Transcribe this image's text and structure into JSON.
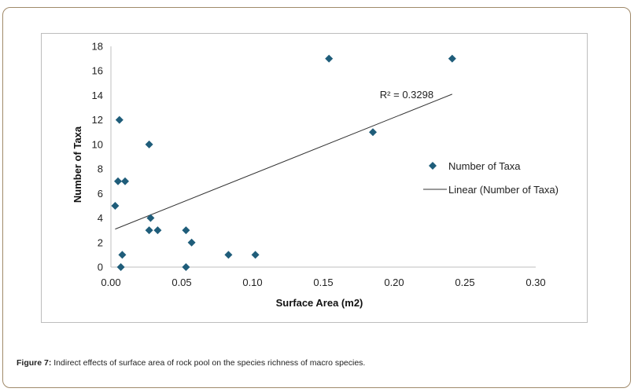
{
  "caption": {
    "label": "Figure 7:",
    "text": " Indirect effects of surface area of rock pool on the species richness of macro species."
  },
  "colors": {
    "marker": "#1f5d7a",
    "trendline": "#333333",
    "frame": "#a08a6a"
  },
  "chart_data": {
    "type": "scatter",
    "xlabel": "Surface Area (m2)",
    "ylabel": "Number of Taxa",
    "xlim": [
      0,
      0.3
    ],
    "ylim": [
      0,
      18
    ],
    "x_ticks": [
      "0.00",
      "0.05",
      "0.10",
      "0.15",
      "0.20",
      "0.25",
      "0.30"
    ],
    "y_ticks": [
      "0",
      "2",
      "4",
      "6",
      "8",
      "10",
      "12",
      "14",
      "16",
      "18"
    ],
    "grid": false,
    "legend_position": "right",
    "series": [
      {
        "name": "Number of Taxa",
        "points": [
          {
            "x": 0.003,
            "y": 5
          },
          {
            "x": 0.005,
            "y": 7
          },
          {
            "x": 0.006,
            "y": 12
          },
          {
            "x": 0.007,
            "y": 0
          },
          {
            "x": 0.008,
            "y": 1
          },
          {
            "x": 0.01,
            "y": 7
          },
          {
            "x": 0.027,
            "y": 3
          },
          {
            "x": 0.027,
            "y": 10
          },
          {
            "x": 0.028,
            "y": 4
          },
          {
            "x": 0.033,
            "y": 3
          },
          {
            "x": 0.053,
            "y": 3
          },
          {
            "x": 0.053,
            "y": 0
          },
          {
            "x": 0.057,
            "y": 2
          },
          {
            "x": 0.083,
            "y": 1
          },
          {
            "x": 0.102,
            "y": 1
          },
          {
            "x": 0.154,
            "y": 17
          },
          {
            "x": 0.185,
            "y": 11
          },
          {
            "x": 0.241,
            "y": 17
          }
        ]
      }
    ],
    "trendline": {
      "name": "Linear (Number of Taxa)",
      "x_start": 0.003,
      "y_start": 3.1,
      "x_end": 0.241,
      "y_end": 14.1,
      "r_squared_label": "R² = 0.3298"
    }
  }
}
